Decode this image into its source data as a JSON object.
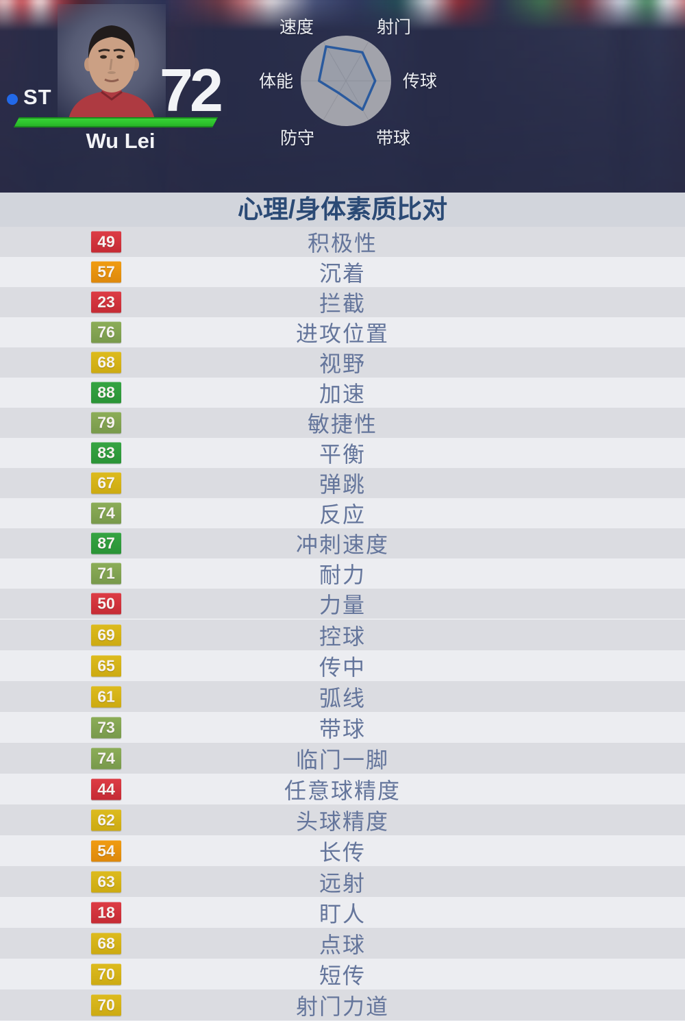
{
  "hero": {
    "position": "ST",
    "rating": "72",
    "player_name": "Wu Lei"
  },
  "section": {
    "title": "心理/身体素质比对"
  },
  "chart_data": {
    "type": "radar",
    "axes": [
      "速度",
      "射门",
      "传球",
      "带球",
      "防守",
      "体能"
    ],
    "values": [
      87,
      72,
      64,
      73,
      31,
      59
    ],
    "max": 99,
    "polygon_color": "#2a5a9e",
    "circle_color": "#a2a3ab",
    "legend_position": "around"
  },
  "colors": {
    "tier_red": "#d2333d",
    "tier_orange": "#e6940f",
    "tier_yellow": "#d4b11c",
    "tier_olive": "#82a452",
    "tier_green": "#2f9e3c",
    "form_bar_green": "#2ec42d",
    "position_dot_blue": "#2269e8",
    "header_navy": "#282c48",
    "title_text": "#2b4a75",
    "label_text": "#64759b"
  },
  "attributes": {
    "section1": [
      {
        "value": "49",
        "tier": "red",
        "label": "积极性"
      },
      {
        "value": "57",
        "tier": "orange",
        "label": "沉着"
      },
      {
        "value": "23",
        "tier": "red",
        "label": "拦截"
      },
      {
        "value": "76",
        "tier": "olive",
        "label": "进攻位置"
      },
      {
        "value": "68",
        "tier": "yellow",
        "label": "视野"
      },
      {
        "value": "88",
        "tier": "green",
        "label": "加速"
      },
      {
        "value": "79",
        "tier": "olive",
        "label": "敏捷性"
      },
      {
        "value": "83",
        "tier": "green",
        "label": "平衡"
      },
      {
        "value": "67",
        "tier": "yellow",
        "label": "弹跳"
      },
      {
        "value": "74",
        "tier": "olive",
        "label": "反应"
      },
      {
        "value": "87",
        "tier": "green",
        "label": "冲刺速度"
      },
      {
        "value": "71",
        "tier": "olive",
        "label": "耐力"
      },
      {
        "value": "50",
        "tier": "red",
        "label": "力量"
      }
    ],
    "section2": [
      {
        "value": "69",
        "tier": "yellow",
        "label": "控球"
      },
      {
        "value": "65",
        "tier": "yellow",
        "label": "传中"
      },
      {
        "value": "61",
        "tier": "yellow",
        "label": "弧线"
      },
      {
        "value": "73",
        "tier": "olive",
        "label": "带球"
      },
      {
        "value": "74",
        "tier": "olive",
        "label": "临门一脚"
      },
      {
        "value": "44",
        "tier": "red",
        "label": "任意球精度"
      },
      {
        "value": "62",
        "tier": "yellow",
        "label": "头球精度"
      },
      {
        "value": "54",
        "tier": "orange",
        "label": "长传"
      },
      {
        "value": "63",
        "tier": "yellow",
        "label": "远射"
      },
      {
        "value": "18",
        "tier": "red",
        "label": "盯人"
      },
      {
        "value": "68",
        "tier": "yellow",
        "label": "点球"
      },
      {
        "value": "70",
        "tier": "yellow",
        "label": "短传"
      },
      {
        "value": "70",
        "tier": "yellow",
        "label": "射门力道"
      }
    ]
  }
}
